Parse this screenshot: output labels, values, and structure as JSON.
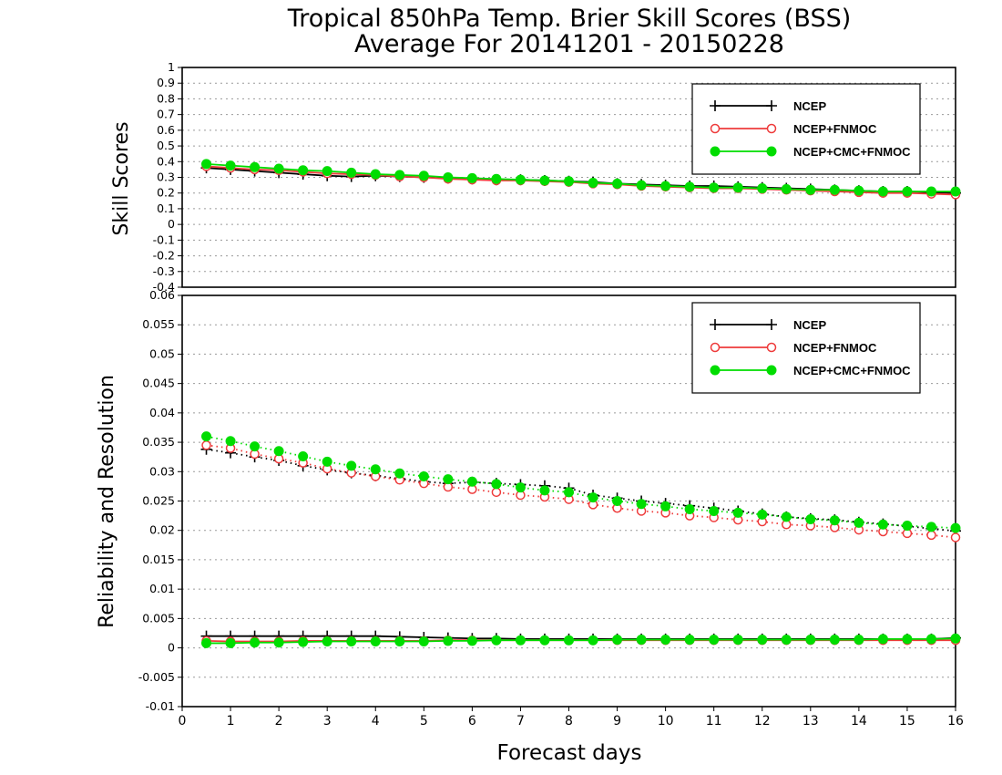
{
  "title_line1": "Tropical 850hPa Temp. Brier Skill Scores (BSS)",
  "title_line2": "Average For 20141201 - 20150228",
  "chart_data": [
    {
      "type": "line",
      "ylabel": "Skill Scores",
      "ylim": [
        -0.4,
        1
      ],
      "yticks": [
        "-0.4",
        "-0.3",
        "-0.2",
        "-0.1",
        "0",
        "0.1",
        "0.2",
        "0.3",
        "0.4",
        "0.5",
        "0.6",
        "0.7",
        "0.8",
        "0.9",
        "1"
      ],
      "xlim": [
        0,
        16
      ],
      "grid": true,
      "legend_position": "top-right",
      "x": [
        0.5,
        1,
        1.5,
        2,
        2.5,
        3,
        3.5,
        4,
        4.5,
        5,
        5.5,
        6,
        6.5,
        7,
        7.5,
        8,
        8.5,
        9,
        9.5,
        10,
        10.5,
        11,
        11.5,
        12,
        12.5,
        13,
        13.5,
        14,
        14.5,
        15,
        15.5,
        16
      ],
      "series": [
        {
          "name": "NCEP",
          "color": "#000000",
          "marker": "plus",
          "values": [
            0.36,
            0.35,
            0.34,
            0.33,
            0.32,
            0.31,
            0.305,
            0.31,
            0.305,
            0.3,
            0.295,
            0.29,
            0.285,
            0.285,
            0.28,
            0.275,
            0.27,
            0.26,
            0.255,
            0.25,
            0.245,
            0.245,
            0.24,
            0.235,
            0.23,
            0.225,
            0.22,
            0.215,
            0.21,
            0.21,
            0.205,
            0.2
          ]
        },
        {
          "name": "NCEP+FNMOC",
          "color": "#ee3b3b",
          "marker": "open-circle",
          "values": [
            0.37,
            0.36,
            0.35,
            0.345,
            0.335,
            0.325,
            0.32,
            0.315,
            0.305,
            0.3,
            0.29,
            0.285,
            0.28,
            0.28,
            0.275,
            0.27,
            0.26,
            0.255,
            0.245,
            0.24,
            0.235,
            0.23,
            0.23,
            0.225,
            0.22,
            0.215,
            0.21,
            0.205,
            0.2,
            0.2,
            0.195,
            0.19
          ]
        },
        {
          "name": "NCEP+CMC+FNMOC",
          "color": "#00dd00",
          "marker": "filled-circle",
          "values": [
            0.385,
            0.375,
            0.365,
            0.355,
            0.345,
            0.34,
            0.33,
            0.32,
            0.315,
            0.31,
            0.3,
            0.295,
            0.29,
            0.285,
            0.28,
            0.275,
            0.265,
            0.26,
            0.25,
            0.245,
            0.24,
            0.235,
            0.235,
            0.23,
            0.225,
            0.22,
            0.22,
            0.215,
            0.21,
            0.21,
            0.21,
            0.21
          ]
        }
      ]
    },
    {
      "type": "line",
      "ylabel": "Reliability and Resolution",
      "xlabel": "Forecast days",
      "ylim": [
        -0.01,
        0.06
      ],
      "yticks": [
        "-0.01",
        "-0.005",
        "0",
        "0.005",
        "0.01",
        "0.015",
        "0.02",
        "0.025",
        "0.03",
        "0.035",
        "0.04",
        "0.045",
        "0.05",
        "0.055",
        "0.06"
      ],
      "xlim": [
        0,
        16
      ],
      "xticks": [
        "0",
        "1",
        "2",
        "3",
        "4",
        "5",
        "6",
        "7",
        "8",
        "9",
        "10",
        "11",
        "12",
        "13",
        "14",
        "15",
        "16"
      ],
      "grid": true,
      "legend_position": "top-right",
      "x": [
        0.5,
        1,
        1.5,
        2,
        2.5,
        3,
        3.5,
        4,
        4.5,
        5,
        5.5,
        6,
        6.5,
        7,
        7.5,
        8,
        8.5,
        9,
        9.5,
        10,
        10.5,
        11,
        11.5,
        12,
        12.5,
        13,
        13.5,
        14,
        14.5,
        15,
        15.5,
        16
      ],
      "series": [
        {
          "name": "NCEP",
          "color": "#000000",
          "marker": "plus",
          "resolution": [
            0.0338,
            0.0332,
            0.0325,
            0.0319,
            0.031,
            0.0303,
            0.0298,
            0.0293,
            0.0288,
            0.0283,
            0.028,
            0.0282,
            0.028,
            0.0278,
            0.0276,
            0.0272,
            0.026,
            0.0255,
            0.025,
            0.0246,
            0.0242,
            0.0238,
            0.0233,
            0.0228,
            0.0223,
            0.022,
            0.0218,
            0.0214,
            0.0211,
            0.0207,
            0.0203,
            0.0199
          ],
          "reliability": [
            0.002,
            0.002,
            0.002,
            0.002,
            0.002,
            0.002,
            0.002,
            0.002,
            0.0019,
            0.0018,
            0.0017,
            0.0016,
            0.0016,
            0.0015,
            0.0015,
            0.0015,
            0.0015,
            0.0015,
            0.0015,
            0.0015,
            0.0015,
            0.0015,
            0.0015,
            0.0015,
            0.0015,
            0.0015,
            0.0015,
            0.0015,
            0.0015,
            0.0015,
            0.0015,
            0.0017
          ]
        },
        {
          "name": "NCEP+FNMOC",
          "color": "#ee3b3b",
          "marker": "open-circle",
          "resolution": [
            0.0345,
            0.034,
            0.033,
            0.0322,
            0.0315,
            0.0305,
            0.0298,
            0.0292,
            0.0286,
            0.028,
            0.0274,
            0.027,
            0.0265,
            0.026,
            0.0257,
            0.0253,
            0.0244,
            0.0238,
            0.0233,
            0.023,
            0.0225,
            0.0222,
            0.0218,
            0.0215,
            0.021,
            0.0208,
            0.0205,
            0.0201,
            0.0198,
            0.0195,
            0.0192,
            0.0188
          ],
          "reliability": [
            0.0012,
            0.0011,
            0.0011,
            0.0011,
            0.0012,
            0.0012,
            0.0012,
            0.0012,
            0.0012,
            0.0012,
            0.0013,
            0.0013,
            0.0013,
            0.0013,
            0.0013,
            0.0013,
            0.0013,
            0.0013,
            0.0013,
            0.0013,
            0.0013,
            0.0013,
            0.0013,
            0.0013,
            0.0013,
            0.0013,
            0.0013,
            0.0013,
            0.0013,
            0.0013,
            0.0013,
            0.0013
          ]
        },
        {
          "name": "NCEP+CMC+FNMOC",
          "color": "#00dd00",
          "marker": "filled-circle",
          "resolution": [
            0.036,
            0.0352,
            0.0343,
            0.0335,
            0.0326,
            0.0317,
            0.031,
            0.0304,
            0.0297,
            0.0292,
            0.0287,
            0.0283,
            0.0279,
            0.0273,
            0.0268,
            0.0265,
            0.0256,
            0.025,
            0.0245,
            0.0241,
            0.0236,
            0.0233,
            0.023,
            0.0227,
            0.0223,
            0.0219,
            0.0217,
            0.0213,
            0.021,
            0.0208,
            0.0206,
            0.0204
          ],
          "reliability": [
            0.0008,
            0.0008,
            0.0009,
            0.0009,
            0.001,
            0.0011,
            0.0011,
            0.0011,
            0.0011,
            0.0011,
            0.0012,
            0.0012,
            0.0013,
            0.0013,
            0.0013,
            0.0013,
            0.0013,
            0.0014,
            0.0014,
            0.0014,
            0.0014,
            0.0014,
            0.0014,
            0.0014,
            0.0014,
            0.0014,
            0.0014,
            0.0014,
            0.0015,
            0.0015,
            0.0015,
            0.0016
          ]
        }
      ]
    }
  ]
}
